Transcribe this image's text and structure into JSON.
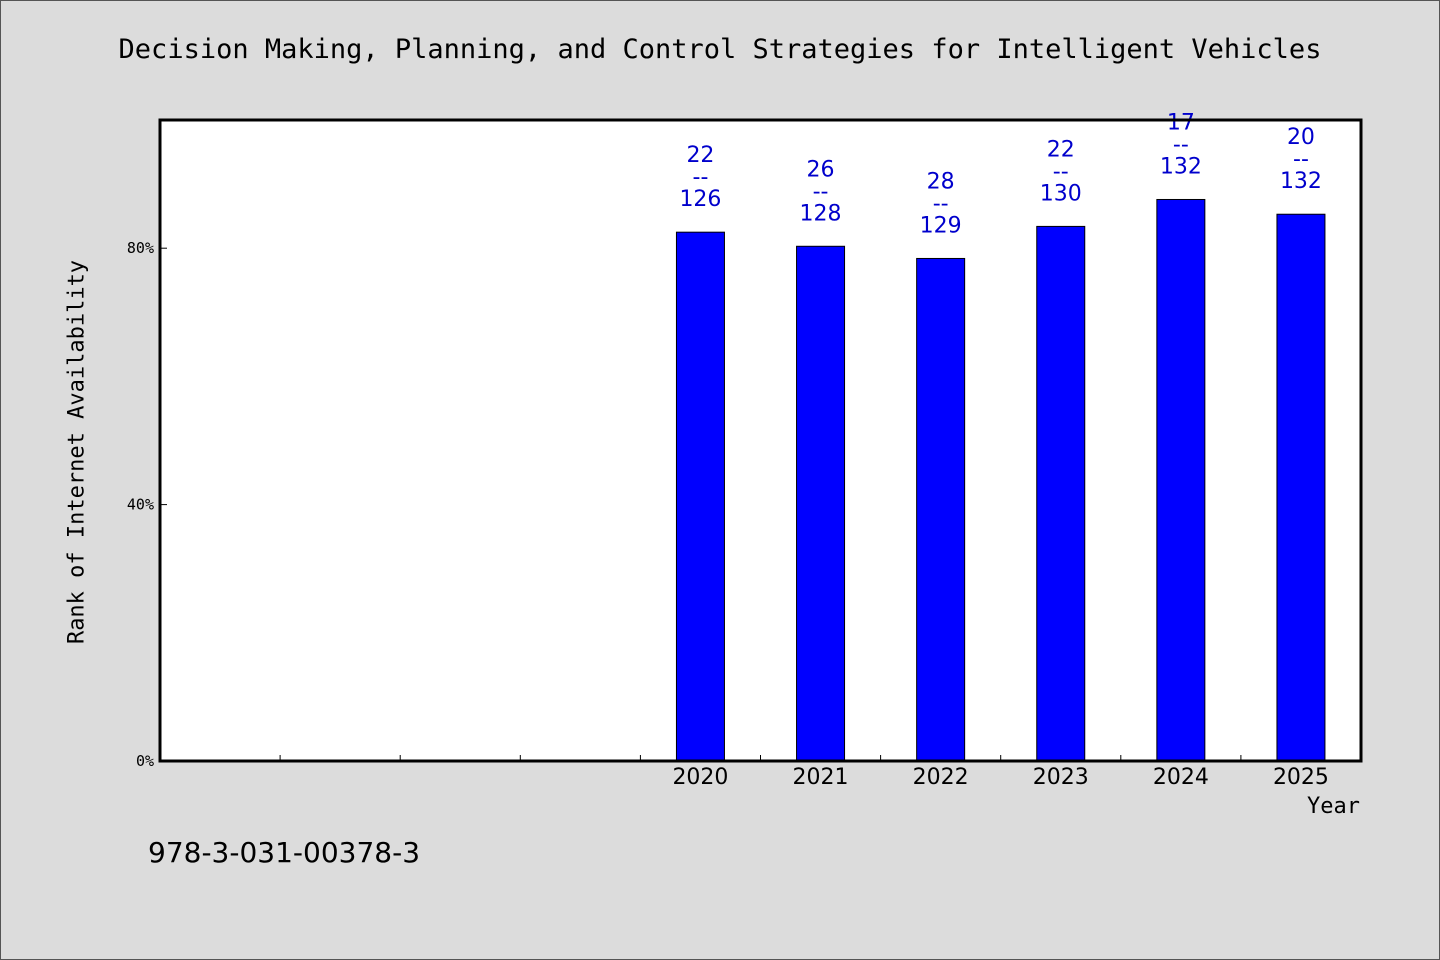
{
  "chart_data": {
    "type": "bar",
    "title": "Decision Making, Planning, and Control Strategies for Intelligent Vehicles",
    "xlabel": "Year",
    "ylabel": "Rank of Internet Availability",
    "categories": [
      "",
      "",
      "",
      "",
      "2020",
      "2021",
      "2022",
      "2023",
      "2024",
      "2025"
    ],
    "values": [
      null,
      null,
      null,
      null,
      82.5,
      80.3,
      78.4,
      83.4,
      87.6,
      85.3
    ],
    "bar_labels": [
      {
        "rank": "22",
        "sep": "--",
        "total": "126"
      },
      {
        "rank": "26",
        "sep": "--",
        "total": "128"
      },
      {
        "rank": "28",
        "sep": "--",
        "total": "129"
      },
      {
        "rank": "22",
        "sep": "--",
        "total": "130"
      },
      {
        "rank": "17",
        "sep": "--",
        "total": "132"
      },
      {
        "rank": "20",
        "sep": "--",
        "total": "132"
      }
    ],
    "ylim": [
      0,
      100
    ],
    "yticks": [
      0,
      40,
      80
    ],
    "ytick_labels": [
      "0%",
      "40%",
      "80%"
    ],
    "grid": false,
    "legend": "none",
    "bar_color": "#0000ff",
    "label_color": "#0000cc"
  },
  "footer": {
    "isbn": "978-3-031-00378-3"
  }
}
